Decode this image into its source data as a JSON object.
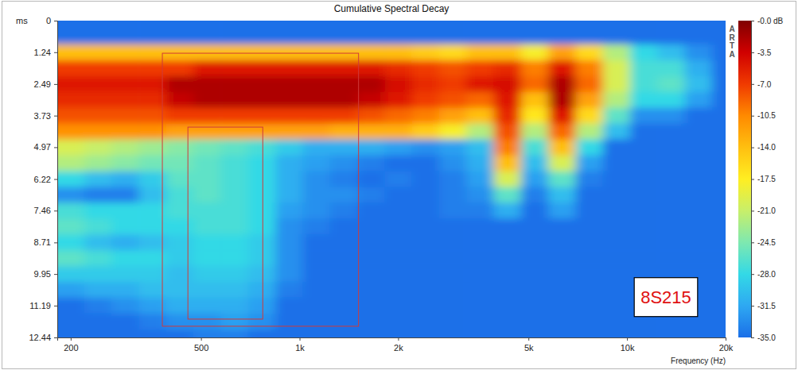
{
  "chart_data": {
    "type": "heatmap",
    "title": "Cumulative Spectral Decay",
    "x_label": "Frequency (Hz)",
    "y_label": "ms",
    "side_label": "ARTA",
    "annotation": "8S215",
    "log": "x",
    "grid": false,
    "xlim": [
      182,
      20000
    ],
    "ylim": [
      0,
      12.44
    ],
    "xticks": [
      200,
      500,
      {
        "value": 1000,
        "label": "1k"
      },
      {
        "value": 2000,
        "label": "2k"
      },
      {
        "value": 5000,
        "label": "5k"
      },
      {
        "value": 10000,
        "label": "10k"
      },
      {
        "value": 20000,
        "label": "20k"
      }
    ],
    "yticks": [
      0,
      1.24,
      2.49,
      3.73,
      4.97,
      6.22,
      7.46,
      8.71,
      9.95,
      11.19,
      12.44
    ],
    "x": [
      200,
      242,
      293,
      355,
      430,
      521,
      632,
      766,
      928,
      1124,
      1362,
      1650,
      2000,
      2423,
      2936,
      3557,
      4309,
      5221,
      6325,
      7663,
      9284,
      11248,
      13627,
      16510,
      20000
    ],
    "y": [
      0,
      0.62,
      1.24,
      1.87,
      2.49,
      3.11,
      3.73,
      4.35,
      4.97,
      5.6,
      6.22,
      6.84,
      7.46,
      8.09,
      8.71,
      9.33,
      9.95,
      10.57,
      11.19,
      11.82,
      12.44
    ],
    "z": [
      [
        -35,
        -35,
        -35,
        -35,
        -35,
        -35,
        -35,
        -35,
        -35,
        -35,
        -35,
        -35,
        -35,
        -35,
        -35,
        -35,
        -35,
        -35,
        -35,
        -35,
        -35,
        -35,
        -35,
        -35,
        -35
      ],
      [
        -35,
        -35,
        -35,
        -35,
        -35,
        -35,
        -35,
        -35,
        -35,
        -35,
        -35,
        -35,
        -35,
        -35,
        -35,
        -35,
        -35,
        -35,
        -35,
        -35,
        -35,
        -35,
        -35,
        -35,
        -35
      ],
      [
        -14,
        -14,
        -14,
        -14,
        -14,
        -14,
        -14,
        -14,
        -14,
        -14,
        -14,
        -14,
        -14,
        -15,
        -16,
        -14,
        -14,
        -18,
        -12,
        -16,
        -22,
        -28,
        -30,
        -33,
        -35
      ],
      [
        -7,
        -7,
        -7,
        -7,
        -7,
        -5,
        -5,
        -5,
        -5,
        -5,
        -5,
        -5,
        -6,
        -7,
        -8,
        -7,
        -6,
        -10,
        -5,
        -10,
        -20,
        -27,
        -27,
        -31,
        -35
      ],
      [
        -5,
        -5,
        -5,
        -5,
        -2,
        -2,
        -2,
        -2,
        -2,
        -2,
        -2,
        -2,
        -4,
        -6,
        -7,
        -5,
        -4,
        -9,
        -2,
        -9,
        -20,
        -27,
        -26,
        -30,
        -35
      ],
      [
        -6,
        -6,
        -6,
        -6,
        -3,
        -2,
        -2,
        -2,
        -2,
        -2,
        -2,
        -3,
        -5,
        -7,
        -8,
        -9,
        -5,
        -14,
        -2,
        -12,
        -22,
        -28,
        -28,
        -32,
        -35
      ],
      [
        -8,
        -8,
        -8,
        -8,
        -7,
        -7,
        -7,
        -7,
        -7,
        -7,
        -7,
        -8,
        -9,
        -10,
        -12,
        -14,
        -6,
        -17,
        -5,
        -16,
        -26,
        -33,
        -33,
        -35,
        -35
      ],
      [
        -11,
        -11,
        -11,
        -11,
        -12,
        -12,
        -12,
        -12,
        -12,
        -12,
        -13,
        -13,
        -13,
        -15,
        -18,
        -22,
        -8,
        -22,
        -9,
        -22,
        -30,
        -35,
        -35,
        -35,
        -35
      ],
      [
        -20,
        -21,
        -22,
        -23,
        -24,
        -25,
        -26,
        -27,
        -29,
        -31,
        -31,
        -31,
        -32,
        -33,
        -32,
        -30,
        -10,
        -27,
        -14,
        -28,
        -35,
        -35,
        -35,
        -35,
        -35
      ],
      [
        -22,
        -23,
        -24,
        -25,
        -25,
        -26,
        -27,
        -28,
        -31,
        -32,
        -33,
        -34,
        -35,
        -35,
        -33,
        -31,
        -14,
        -30,
        -20,
        -32,
        -35,
        -35,
        -35,
        -35,
        -35
      ],
      [
        -28,
        -30,
        -31,
        -29,
        -26,
        -26,
        -27,
        -28,
        -31,
        -33,
        -34,
        -35,
        -34,
        -35,
        -34,
        -32,
        -20,
        -32,
        -26,
        -34,
        -35,
        -35,
        -35,
        -35,
        -35
      ],
      [
        -33,
        -34,
        -34,
        -30,
        -27,
        -26,
        -27,
        -28,
        -31,
        -33,
        -33,
        -34,
        -35,
        -35,
        -34,
        -33,
        -26,
        -34,
        -30,
        -35,
        -35,
        -35,
        -35,
        -35,
        -35
      ],
      [
        -27,
        -28,
        -28,
        -28,
        -27,
        -27,
        -27,
        -28,
        -32,
        -33,
        -34,
        -35,
        -35,
        -35,
        -34,
        -34,
        -31,
        -35,
        -32,
        -35,
        -35,
        -35,
        -35,
        -35,
        -35
      ],
      [
        -26,
        -27,
        -28,
        -28,
        -28,
        -27,
        -27,
        -28,
        -33,
        -34,
        -35,
        -35,
        -35,
        -35,
        -35,
        -35,
        -35,
        -35,
        -35,
        -35,
        -35,
        -35,
        -35,
        -35,
        -35
      ],
      [
        -28,
        -30,
        -31,
        -30,
        -29,
        -28,
        -28,
        -29,
        -33,
        -35,
        -35,
        -35,
        -35,
        -35,
        -35,
        -35,
        -35,
        -35,
        -35,
        -35,
        -35,
        -35,
        -35,
        -35,
        -35
      ],
      [
        -26,
        -27,
        -28,
        -28,
        -29,
        -28,
        -28,
        -29,
        -33,
        -35,
        -35,
        -35,
        -35,
        -35,
        -35,
        -35,
        -35,
        -35,
        -35,
        -35,
        -35,
        -35,
        -35,
        -35,
        -35
      ],
      [
        -29,
        -29,
        -29,
        -29,
        -30,
        -29,
        -29,
        -30,
        -33,
        -35,
        -35,
        -35,
        -35,
        -35,
        -35,
        -35,
        -35,
        -35,
        -35,
        -35,
        -35,
        -35,
        -35,
        -35,
        -35
      ],
      [
        -32,
        -31,
        -31,
        -30,
        -30,
        -30,
        -30,
        -31,
        -34,
        -35,
        -35,
        -35,
        -35,
        -35,
        -35,
        -35,
        -35,
        -35,
        -35,
        -35,
        -35,
        -35,
        -35,
        -35,
        -35
      ],
      [
        -35,
        -34,
        -33,
        -32,
        -31,
        -31,
        -31,
        -32,
        -35,
        -35,
        -35,
        -35,
        -35,
        -35,
        -35,
        -35,
        -35,
        -35,
        -35,
        -35,
        -35,
        -35,
        -35,
        -35,
        -35
      ],
      [
        -35,
        -35,
        -35,
        -34,
        -33,
        -33,
        -32,
        -33,
        -35,
        -35,
        -35,
        -35,
        -35,
        -35,
        -35,
        -35,
        -35,
        -35,
        -35,
        -35,
        -35,
        -35,
        -35,
        -35,
        -35
      ],
      [
        -35,
        -35,
        -35,
        -35,
        -35,
        -34,
        -34,
        -35,
        -35,
        -35,
        -35,
        -35,
        -35,
        -35,
        -35,
        -35,
        -35,
        -35,
        -35,
        -35,
        -35,
        -35,
        -35,
        -35,
        -35
      ]
    ],
    "colorbar": {
      "range": [
        -35,
        0
      ],
      "ticks": [
        {
          "value": 0,
          "label": "-0.0 dB"
        },
        -3.5,
        {
          "value": -7,
          "label": "-7.0"
        },
        -10.5,
        {
          "value": -14,
          "label": "-14.0"
        },
        -17.5,
        {
          "value": -21,
          "label": "-21.0"
        },
        -24.5,
        {
          "value": -28,
          "label": "-28.0"
        },
        -31.5,
        {
          "value": -35,
          "label": "-35.0"
        }
      ]
    },
    "highlight_boxes": [
      {
        "x": [
          381,
          1514
        ],
        "y": [
          1.28,
          12.0
        ]
      },
      {
        "x": [
          456,
          772
        ],
        "y": [
          4.18,
          11.72
        ]
      }
    ]
  }
}
